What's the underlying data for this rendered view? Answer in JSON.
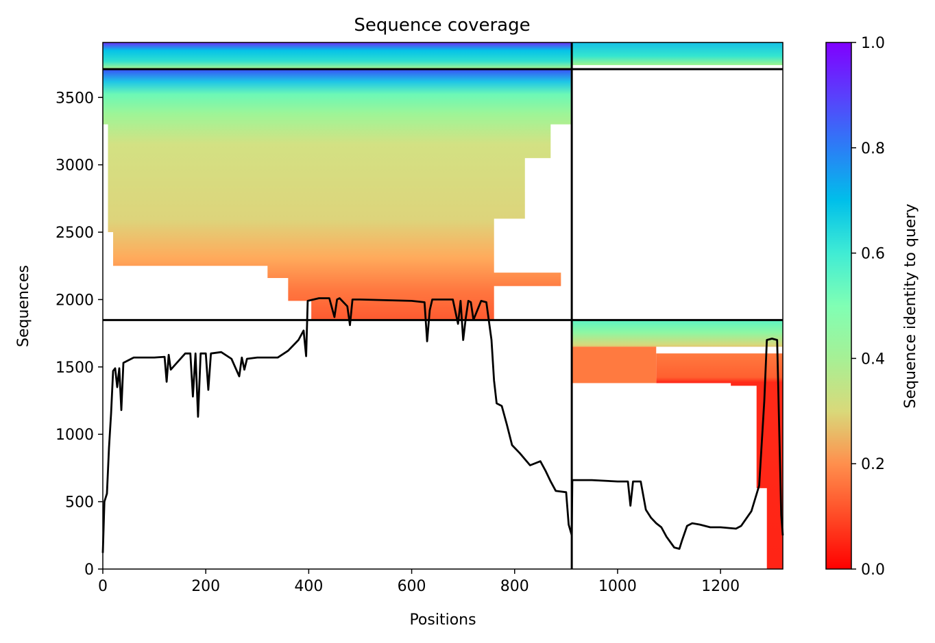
{
  "chart_data": {
    "type": "heatmap",
    "title": "Sequence coverage",
    "xlabel": "Positions",
    "ylabel": "Sequences",
    "xlim": [
      0,
      1321
    ],
    "ylim": [
      0,
      3908
    ],
    "xticks": [
      0,
      200,
      400,
      600,
      800,
      1000,
      1200
    ],
    "yticks": [
      0,
      500,
      1000,
      1500,
      2000,
      2500,
      3000,
      3500
    ],
    "colorbar": {
      "label": "Sequence identity to query",
      "range": [
        0,
        1
      ],
      "ticks": [
        "0.0",
        "0.2",
        "0.4",
        "0.6",
        "0.8",
        "1.0"
      ],
      "colormap": "rainbow_r"
    },
    "segment_boundaries_x": [
      911
    ],
    "segment_boundaries_y": [
      1848,
      3710
    ],
    "coverage_blocks": [
      {
        "x": [
          0,
          911
        ],
        "y": [
          3710,
          3908
        ],
        "identity": [
          0.55,
          0.95
        ]
      },
      {
        "x": [
          911,
          1321
        ],
        "y": [
          3710,
          3908
        ],
        "identity": [
          0.55,
          0.8
        ]
      },
      {
        "x": [
          0,
          911
        ],
        "y": [
          1848,
          3710
        ],
        "identity": [
          0.1,
          0.9
        ]
      },
      {
        "x": [
          911,
          1321
        ],
        "y": [
          0,
          1848
        ],
        "identity": [
          0.0,
          0.5
        ]
      }
    ],
    "coverage_line": {
      "name": "coverage",
      "x": [
        0,
        3,
        8,
        12,
        16,
        20,
        24,
        28,
        32,
        36,
        40,
        60,
        100,
        120,
        124,
        128,
        132,
        160,
        170,
        175,
        180,
        185,
        190,
        200,
        205,
        210,
        230,
        250,
        265,
        270,
        275,
        280,
        300,
        340,
        360,
        380,
        390,
        395,
        398,
        420,
        440,
        450,
        455,
        460,
        475,
        480,
        485,
        500,
        600,
        625,
        630,
        635,
        640,
        650,
        680,
        690,
        695,
        700,
        705,
        710,
        715,
        720,
        735,
        745,
        755,
        760,
        765,
        775,
        785,
        795,
        810,
        830,
        850,
        860,
        870,
        880,
        900,
        905,
        911,
        912,
        950,
        1000,
        1020,
        1025,
        1030,
        1045,
        1055,
        1065,
        1075,
        1085,
        1095,
        1110,
        1120,
        1125,
        1135,
        1145,
        1160,
        1180,
        1200,
        1230,
        1240,
        1260,
        1275,
        1285,
        1290,
        1300,
        1310,
        1318,
        1321
      ],
      "y": [
        120,
        500,
        560,
        900,
        1150,
        1470,
        1490,
        1350,
        1490,
        1180,
        1530,
        1570,
        1570,
        1575,
        1390,
        1590,
        1480,
        1600,
        1600,
        1280,
        1600,
        1130,
        1600,
        1600,
        1330,
        1600,
        1610,
        1560,
        1430,
        1570,
        1480,
        1560,
        1570,
        1570,
        1620,
        1700,
        1770,
        1580,
        1990,
        2010,
        2010,
        1870,
        2000,
        2010,
        1950,
        1810,
        2000,
        2000,
        1990,
        1980,
        1690,
        1920,
        2000,
        2000,
        2000,
        1820,
        1990,
        1700,
        1860,
        1990,
        1980,
        1850,
        1990,
        1980,
        1700,
        1400,
        1230,
        1210,
        1070,
        920,
        860,
        770,
        800,
        730,
        650,
        580,
        570,
        330,
        250,
        660,
        660,
        650,
        650,
        470,
        650,
        650,
        440,
        380,
        340,
        310,
        240,
        160,
        150,
        210,
        320,
        340,
        330,
        310,
        310,
        300,
        320,
        430,
        620,
        1250,
        1700,
        1710,
        1700,
        400,
        250
      ]
    }
  }
}
